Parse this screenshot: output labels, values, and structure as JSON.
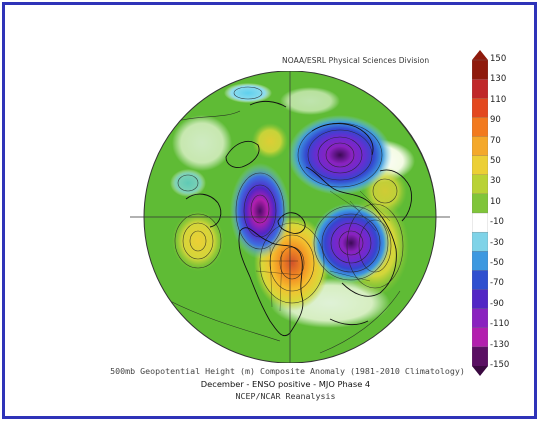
{
  "figure": {
    "credit": "NOAA/ESRL Physical Sciences Division",
    "caption_line1": "500mb Geopotential Height (m) Composite Anomaly (1981-2010 Climatology)",
    "caption_line2": "December - ENSO positive - MJO Phase 4",
    "caption_line3": "NCEP/NCAR Reanalysis"
  },
  "colorbar": {
    "labels": [
      "150",
      "130",
      "110",
      "90",
      "70",
      "50",
      "30",
      "10",
      "-10",
      "-30",
      "-50",
      "-70",
      "-90",
      "-110",
      "-130",
      "-150"
    ],
    "colors": [
      "#8f1a0c",
      "#c0282a",
      "#e3481f",
      "#f27a1f",
      "#f4a82a",
      "#eccf35",
      "#b9d235",
      "#80c53a",
      "#ffffff",
      "#7fd3e8",
      "#3d98e0",
      "#2f4fcf",
      "#5226c5",
      "#8a22bf",
      "#b21fae",
      "#5a0f63"
    ]
  },
  "map": {
    "projection": "north-polar-stereographic",
    "field": "500mb geopotential height anomaly",
    "features": [
      {
        "name": "negative-anomaly-north-atlantic-europe",
        "sign": "negative"
      },
      {
        "name": "negative-anomaly-siberia",
        "sign": "negative"
      },
      {
        "name": "negative-anomaly-alaska-bering",
        "sign": "negative"
      },
      {
        "name": "positive-anomaly-north-america",
        "sign": "positive"
      },
      {
        "name": "positive-anomaly-north-pacific",
        "sign": "positive"
      }
    ]
  }
}
